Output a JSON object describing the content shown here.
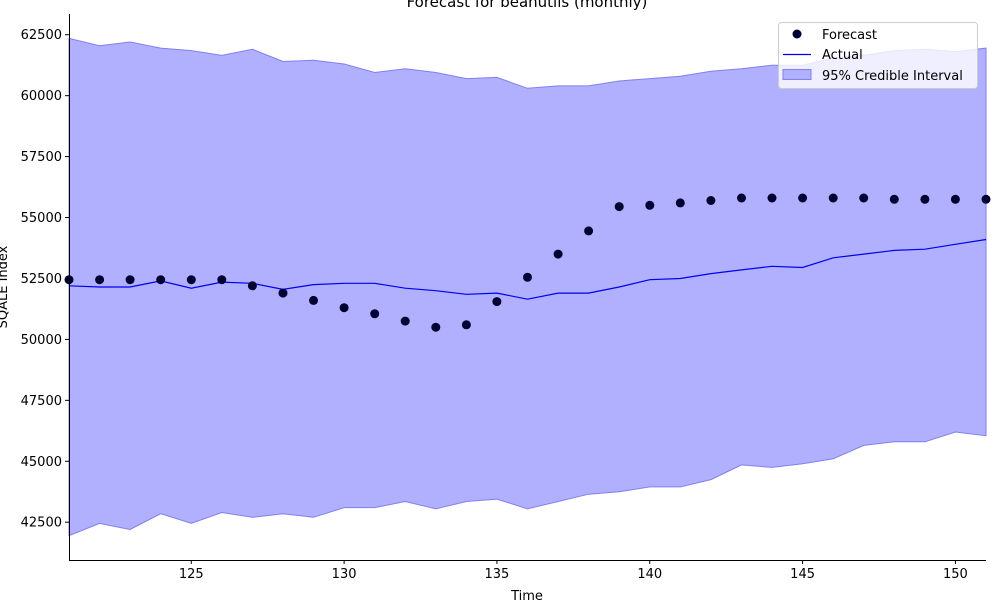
{
  "chart_data": {
    "type": "line",
    "title": "Forecast for beanutils (monthly)",
    "xlabel": "Time",
    "ylabel": "SQALE Index",
    "xlim": [
      121,
      151
    ],
    "ylim": [
      40950,
      63350
    ],
    "x_ticks": [
      125,
      130,
      135,
      140,
      145,
      150
    ],
    "y_ticks": [
      42500,
      45000,
      47500,
      50000,
      52500,
      55000,
      57500,
      60000,
      62500
    ],
    "x": [
      121,
      122,
      123,
      124,
      125,
      126,
      127,
      128,
      129,
      130,
      131,
      132,
      133,
      134,
      135,
      136,
      137,
      138,
      139,
      140,
      141,
      142,
      143,
      144,
      145,
      146,
      147,
      148,
      149,
      150,
      151
    ],
    "series": [
      {
        "name": "Forecast",
        "kind": "scatter",
        "color": "#000033",
        "values": [
          52450,
          52450,
          52450,
          52450,
          52450,
          52450,
          52200,
          51900,
          51600,
          51300,
          51050,
          50750,
          50500,
          50600,
          51550,
          52550,
          53500,
          54450,
          55450,
          55500,
          55600,
          55700,
          55800,
          55800,
          55800,
          55800,
          55800,
          55750,
          55750,
          55750,
          55750
        ]
      },
      {
        "name": "Actual",
        "kind": "line",
        "color": "#0000ee",
        "values": [
          52200,
          52150,
          52150,
          52400,
          52100,
          52350,
          52300,
          52050,
          52250,
          52300,
          52300,
          52100,
          52000,
          51850,
          51900,
          51650,
          51900,
          51900,
          52150,
          52450,
          52500,
          52700,
          52850,
          53000,
          52950,
          53350,
          53500,
          53650,
          53700,
          53900,
          54100
        ]
      },
      {
        "name": "95% Credible Interval",
        "kind": "band",
        "color": "#b0b0ff",
        "edge_color": "#8080ee",
        "lower": [
          41950,
          42450,
          42200,
          42850,
          42450,
          42900,
          42700,
          42850,
          42700,
          43100,
          43100,
          43350,
          43050,
          43350,
          43450,
          43050,
          43350,
          43650,
          43750,
          43950,
          43950,
          44250,
          44850,
          44750,
          44900,
          45100,
          45650,
          45800,
          45800,
          46200,
          46050
        ],
        "upper": [
          62350,
          62050,
          62200,
          61950,
          61850,
          61650,
          61900,
          61400,
          61450,
          61300,
          60950,
          61100,
          60950,
          60700,
          60750,
          60300,
          60400,
          60400,
          60600,
          60700,
          60800,
          61000,
          61100,
          61250,
          61250,
          61550,
          61650,
          61850,
          61900,
          61800,
          61950
        ]
      }
    ],
    "legend": {
      "position": "top-right",
      "entries": [
        "Forecast",
        "Actual",
        "95% Credible Interval"
      ]
    },
    "grid": false
  }
}
